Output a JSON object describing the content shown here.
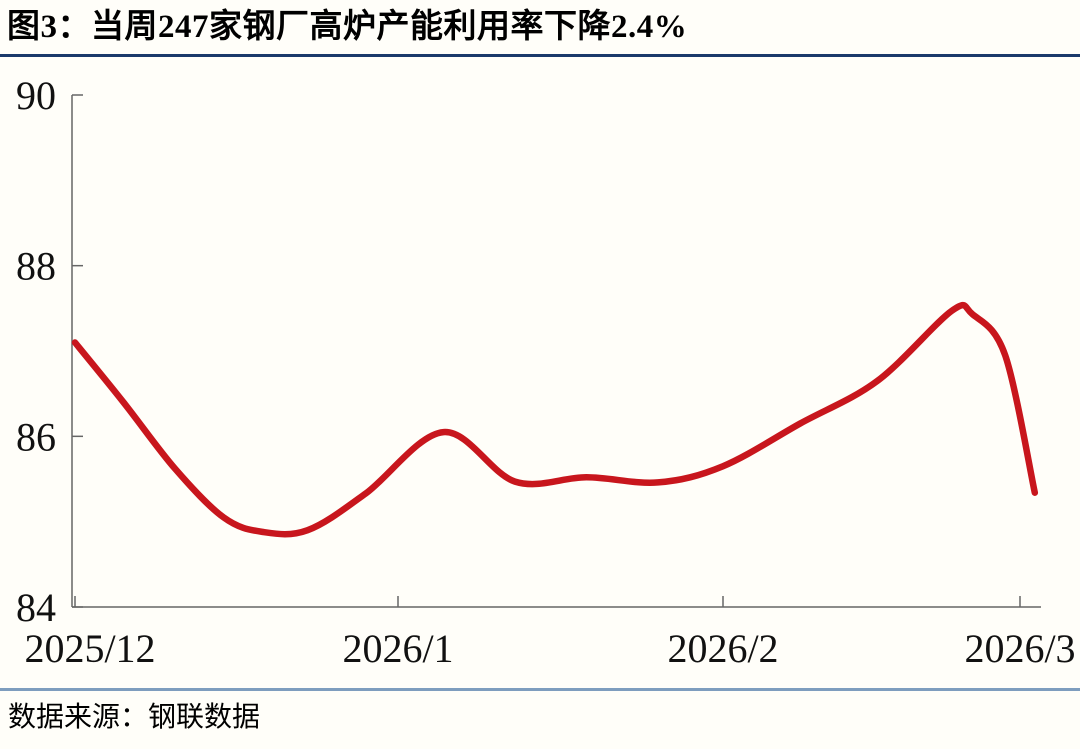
{
  "header": {
    "figure_title": "图3：当周247家钢厂高炉产能利用率下降2.4%"
  },
  "footer": {
    "source_label": "数据来源：钢联数据"
  },
  "colors": {
    "line": "#C8161D",
    "axis": "#666666",
    "label_text": "#111111",
    "title_rule": "#1B3A6B",
    "footer_rule": "#7E9DBE",
    "background": "#FFFEF9"
  },
  "chart_data": {
    "type": "line",
    "title": "当周247家钢厂高炉产能利用率下降2.4%",
    "unit": "%",
    "x_tick_labels": [
      "2025/12",
      "2026/1",
      "2026/2",
      "2026/3"
    ],
    "y_ticks": [
      84,
      86,
      88,
      90
    ],
    "ylim": [
      84,
      90
    ],
    "xlim_months": [
      0,
      3.07
    ],
    "grid": false,
    "legend": "none",
    "x_unit_note": "x in months after the 2025/12 tick (0=2025/12, 1=2026/1, 2=2026/2, 3=2026/3)",
    "series": [
      {
        "points": [
          [
            0.0,
            87.1
          ],
          [
            0.15,
            86.4
          ],
          [
            0.31,
            85.62
          ],
          [
            0.46,
            85.05
          ],
          [
            0.58,
            84.88
          ],
          [
            0.72,
            84.9
          ],
          [
            0.9,
            85.33
          ],
          [
            1.14,
            86.05
          ],
          [
            1.36,
            85.47
          ],
          [
            1.58,
            85.52
          ],
          [
            1.8,
            85.46
          ],
          [
            2.0,
            85.65
          ],
          [
            2.26,
            86.15
          ],
          [
            2.52,
            86.65
          ],
          [
            2.77,
            87.47
          ],
          [
            2.84,
            87.43
          ],
          [
            2.95,
            86.95
          ],
          [
            3.05,
            85.34
          ]
        ]
      }
    ]
  }
}
